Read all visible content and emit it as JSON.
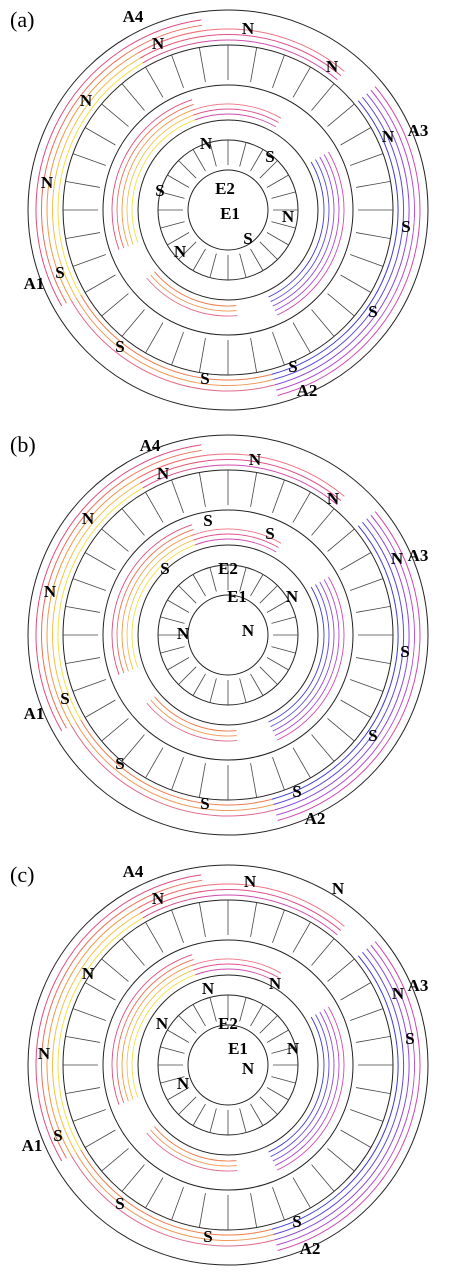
{
  "panels": [
    {
      "tag": "(a)",
      "outer_labels": [
        "A4",
        "N",
        "N",
        "N",
        "A3",
        "N",
        "S",
        "S",
        "S",
        "A2",
        "S",
        "S",
        "A1",
        "S",
        "N",
        "N"
      ],
      "inner_labels": [
        "N",
        "S",
        "S",
        "E2",
        "E1",
        "N",
        "N",
        "S"
      ]
    },
    {
      "tag": "(b)",
      "outer_labels": [
        "A4",
        "N",
        "N",
        "N",
        "A3",
        "N",
        "S",
        "S",
        "S",
        "A2",
        "S",
        "S",
        "A1",
        "S",
        "N",
        "N"
      ],
      "inner_labels": [
        "S",
        "S",
        "S",
        "E2",
        "E1",
        "N",
        "N",
        "N"
      ]
    },
    {
      "tag": "(c)",
      "outer_labels": [
        "A4",
        "N",
        "N",
        "N",
        "A3",
        "N",
        "S",
        "S",
        "A2",
        "S",
        "S",
        "A1",
        "S",
        "N",
        "N"
      ],
      "inner_labels": [
        "N",
        "N",
        "N",
        "E2",
        "E1",
        "N",
        "N",
        "N"
      ]
    }
  ]
}
